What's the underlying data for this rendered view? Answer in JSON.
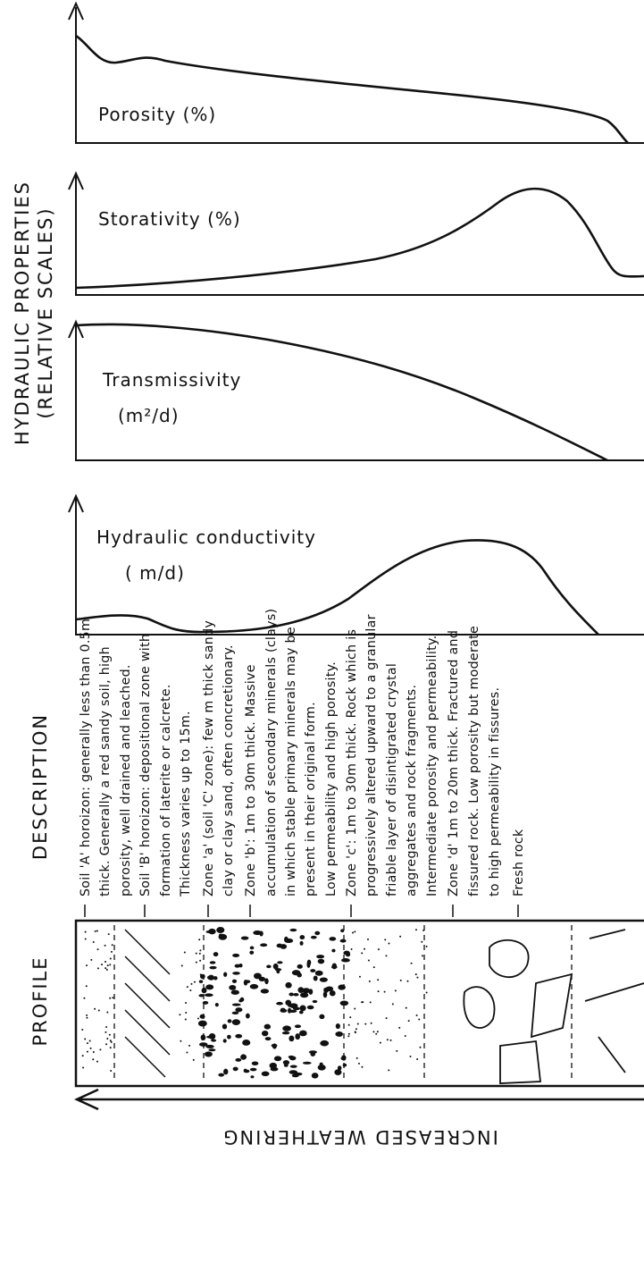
{
  "hydraulic": {
    "title_line1": "HYDRAULIC PROPERTIES",
    "title_line2": "(RELATIVE SCALES)",
    "charts": [
      {
        "label": "Porosity (%)"
      },
      {
        "label": "Storativity (%)"
      },
      {
        "label": "Transmissivity",
        "unit": "(m²/d)"
      },
      {
        "label": "Hydraulic conductivity",
        "unit": "( m/d)"
      }
    ]
  },
  "description": {
    "title": "DESCRIPTION",
    "lines": [
      "Soil 'A' horoizon: generally less than 0.5m",
      "thick. Generally a red sandy soil, high",
      "porosity, well drained and leached.",
      "Soil 'B' horoizon: depositional zone with",
      "formation of laterite or calcrete.",
      "Thickness varies up to 15m.",
      "Zone 'a' (soil 'C' zone): few m thick sandy",
      "clay or clay sand, often concretionary.",
      "Zone 'b': 1m to 30m thick. Massive",
      "accumulation of secondary minerals (clays)",
      "in which stable primary minerals may be",
      "present in their original form.",
      "Low permeability and high porosity.",
      "Zone 'c': 1m to 30m thick. Rock which is",
      "progressively altered upward to a granular",
      "friable layer of disintigrated crystal",
      "aggregates and rock fragments.",
      "Intermediate porosity and permeability.",
      "Zone 'd' 1m to 20m thick. Fractured and",
      "fissured rock. Low porosity but moderate",
      "to high permeability in fissures.",
      "Fresh rock"
    ]
  },
  "profile": {
    "title": "PROFILE",
    "arrow_label": "INCREASED WEATHERING"
  }
}
